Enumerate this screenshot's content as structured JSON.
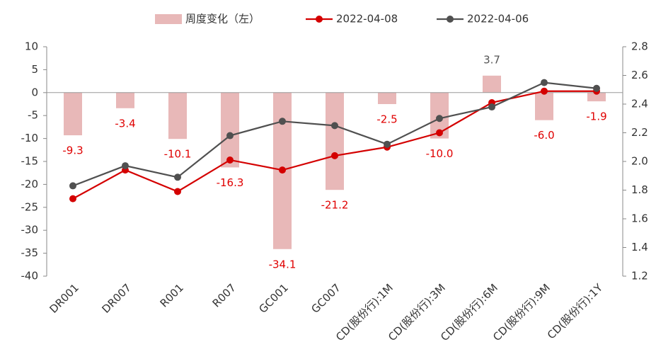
{
  "chart_data": {
    "type": "bar_line",
    "categories": [
      "DR001",
      "DR007",
      "R001",
      "R007",
      "GC001",
      "GC007",
      "CD(股份行):1M",
      "CD(股份行):3M",
      "CD(股份行):6M",
      "CD(股份行):9M",
      "CD(股份行):1Y"
    ],
    "bars": {
      "name": "周度变化（左）",
      "color": "#e8b8b8",
      "values": [
        -9.3,
        -3.4,
        -10.1,
        -16.3,
        -34.1,
        -21.2,
        -2.5,
        -10.0,
        3.7,
        -6.0,
        -1.9
      ],
      "value_labels": [
        "-9.3",
        "-3.4",
        "-10.1",
        "-16.3",
        "-34.1",
        "-21.2",
        "-2.5",
        "-10.0",
        "3.7",
        "-6.0",
        "-1.9"
      ],
      "label_color_negative": "#e00000",
      "label_color_positive": "#555555"
    },
    "series": [
      {
        "name": "2022-04-08",
        "color": "#d40000",
        "axis": "y2",
        "values": [
          1.74,
          1.94,
          1.79,
          2.01,
          1.94,
          2.04,
          2.1,
          2.2,
          2.41,
          2.49,
          2.49
        ]
      },
      {
        "name": "2022-04-06",
        "color": "#505050",
        "axis": "y2",
        "values": [
          1.83,
          1.97,
          1.89,
          2.18,
          2.28,
          2.25,
          2.12,
          2.3,
          2.38,
          2.55,
          2.51
        ]
      }
    ],
    "ylim": [
      -40,
      10
    ],
    "yticks": [
      -40,
      -35,
      -30,
      -25,
      -20,
      -15,
      -10,
      -5,
      0,
      5,
      10
    ],
    "y2lim": [
      1.2,
      2.8
    ],
    "y2ticks": [
      1.2,
      1.4,
      1.6,
      1.8,
      {
        "value": 2.0,
        "label": "2.0"
      },
      2.2,
      2.4,
      2.6,
      2.8
    ]
  }
}
